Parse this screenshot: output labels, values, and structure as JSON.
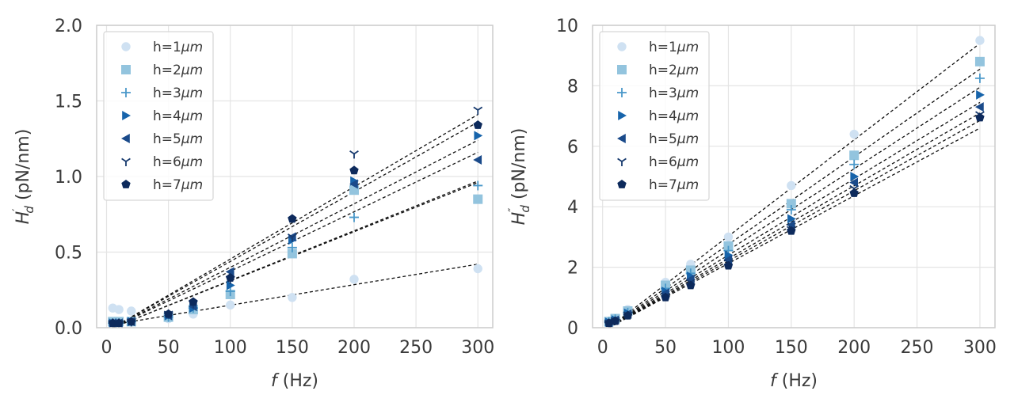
{
  "chart_data": [
    {
      "type": "scatter",
      "title": "",
      "xlabel_italic": "f",
      "xlabel_rest": " (Hz)",
      "ylabel_main": "H",
      "ylabel_sub": "d",
      "ylabel_sup": "′",
      "ylabel_rest": " (pN/nm)",
      "xlim": [
        -8,
        312
      ],
      "ylim": [
        0,
        2.0
      ],
      "xticks": [
        0,
        50,
        100,
        150,
        200,
        250,
        300
      ],
      "xtick_labels": [
        "0",
        "50",
        "100",
        "150",
        "200",
        "250",
        "300"
      ],
      "yticks": [
        0,
        0.5,
        1.0,
        1.5,
        2.0
      ],
      "ytick_labels": [
        "0.0",
        "0.5",
        "1.0",
        "1.5",
        "2.0"
      ],
      "grid": true,
      "legend_position": "top-left",
      "x": [
        5,
        10,
        20,
        50,
        70,
        100,
        150,
        200,
        300
      ],
      "series": [
        {
          "name": "h=1μm",
          "label_prefix": "h=1",
          "label_unit": "μm",
          "marker": "circle",
          "color": "#cfe1f2",
          "values": [
            0.13,
            0.12,
            0.11,
            0.06,
            0.09,
            0.15,
            0.2,
            0.32,
            0.39
          ],
          "fit": [
            0.02,
            0.42
          ]
        },
        {
          "name": "h=2μm",
          "label_prefix": "h=2",
          "label_unit": "μm",
          "marker": "square",
          "color": "#93c4de",
          "values": [
            0.04,
            0.04,
            0.04,
            0.07,
            0.12,
            0.22,
            0.49,
            0.91,
            0.85
          ],
          "fit": [
            0.0,
            0.96
          ]
        },
        {
          "name": "h=3μm",
          "label_prefix": "h=3",
          "label_unit": "μm",
          "marker": "plus",
          "color": "#4a98c9",
          "values": [
            0.03,
            0.03,
            0.04,
            0.07,
            0.13,
            0.24,
            0.53,
            0.73,
            0.94
          ],
          "fit": [
            0.0,
            0.97
          ]
        },
        {
          "name": "h=4μm",
          "label_prefix": "h=4",
          "label_unit": "μm",
          "marker": "triangle-right",
          "color": "#1764ab",
          "values": [
            0.03,
            0.03,
            0.04,
            0.08,
            0.13,
            0.28,
            0.58,
            0.97,
            1.27
          ],
          "fit": [
            0.0,
            1.24
          ]
        },
        {
          "name": "h=5μm",
          "label_prefix": "h=5",
          "label_unit": "μm",
          "marker": "triangle-left",
          "color": "#1a4a8a",
          "values": [
            0.03,
            0.03,
            0.04,
            0.08,
            0.14,
            0.37,
            0.6,
            0.95,
            1.11
          ],
          "fit": [
            0.0,
            1.16
          ]
        },
        {
          "name": "h=6μm",
          "label_prefix": "h=6",
          "label_unit": "μm",
          "marker": "tri-down",
          "color": "#173a6e",
          "values": [
            0.03,
            0.03,
            0.04,
            0.09,
            0.16,
            0.32,
            0.6,
            1.15,
            1.44
          ],
          "fit": [
            0.0,
            1.41
          ]
        },
        {
          "name": "h=7μm",
          "label_prefix": "h=7",
          "label_unit": "μm",
          "marker": "pentagon",
          "color": "#0d2a5c",
          "values": [
            0.03,
            0.03,
            0.04,
            0.09,
            0.17,
            0.33,
            0.72,
            1.04,
            1.34
          ],
          "fit": [
            0.0,
            1.36
          ]
        }
      ]
    },
    {
      "type": "scatter",
      "title": "",
      "xlabel_italic": "f",
      "xlabel_rest": " (Hz)",
      "ylabel_main": "H",
      "ylabel_sub": "d",
      "ylabel_sup": "″",
      "ylabel_rest": " (pN/nm)",
      "xlim": [
        -8,
        312
      ],
      "ylim": [
        0,
        10
      ],
      "xticks": [
        0,
        50,
        100,
        150,
        200,
        250,
        300
      ],
      "xtick_labels": [
        "0",
        "50",
        "100",
        "150",
        "200",
        "250",
        "300"
      ],
      "yticks": [
        0,
        2,
        4,
        6,
        8,
        10
      ],
      "ytick_labels": [
        "0",
        "2",
        "4",
        "6",
        "8",
        "10"
      ],
      "grid": true,
      "legend_position": "top-left",
      "x": [
        5,
        10,
        20,
        50,
        70,
        100,
        150,
        200,
        300
      ],
      "series": [
        {
          "name": "h=1μm",
          "label_prefix": "h=1",
          "label_unit": "μm",
          "marker": "circle",
          "color": "#cfe1f2",
          "values": [
            0.2,
            0.3,
            0.6,
            1.5,
            2.1,
            3.0,
            4.7,
            6.4,
            9.5
          ],
          "fit": [
            0.0,
            9.4
          ]
        },
        {
          "name": "h=2μm",
          "label_prefix": "h=2",
          "label_unit": "μm",
          "marker": "square",
          "color": "#93c4de",
          "values": [
            0.2,
            0.3,
            0.55,
            1.4,
            1.9,
            2.7,
            4.1,
            5.7,
            8.8
          ],
          "fit": [
            0.0,
            8.55
          ]
        },
        {
          "name": "h=3μm",
          "label_prefix": "h=3",
          "label_unit": "μm",
          "marker": "plus",
          "color": "#4a98c9",
          "values": [
            0.2,
            0.28,
            0.5,
            1.3,
            1.8,
            2.55,
            3.9,
            5.4,
            8.25
          ],
          "fit": [
            0.0,
            7.95
          ]
        },
        {
          "name": "h=4μm",
          "label_prefix": "h=4",
          "label_unit": "μm",
          "marker": "triangle-right",
          "color": "#1764ab",
          "values": [
            0.18,
            0.26,
            0.48,
            1.2,
            1.7,
            2.4,
            3.6,
            5.0,
            7.7
          ],
          "fit": [
            0.0,
            7.45
          ]
        },
        {
          "name": "h=5μm",
          "label_prefix": "h=5",
          "label_unit": "μm",
          "marker": "triangle-left",
          "color": "#1a4a8a",
          "values": [
            0.17,
            0.25,
            0.45,
            1.15,
            1.6,
            2.25,
            3.4,
            4.8,
            7.3
          ],
          "fit": [
            0.0,
            7.1
          ]
        },
        {
          "name": "h=6μm",
          "label_prefix": "h=6",
          "label_unit": "μm",
          "marker": "tri-down",
          "color": "#173a6e",
          "values": [
            0.16,
            0.24,
            0.43,
            1.05,
            1.5,
            2.15,
            3.25,
            4.6,
            7.05
          ],
          "fit": [
            0.0,
            6.85
          ]
        },
        {
          "name": "h=7μm",
          "label_prefix": "h=7",
          "label_unit": "μm",
          "marker": "pentagon",
          "color": "#0d2a5c",
          "values": [
            0.15,
            0.22,
            0.4,
            1.0,
            1.4,
            2.05,
            3.2,
            4.45,
            6.95
          ],
          "fit": [
            0.0,
            6.6
          ]
        }
      ]
    }
  ]
}
